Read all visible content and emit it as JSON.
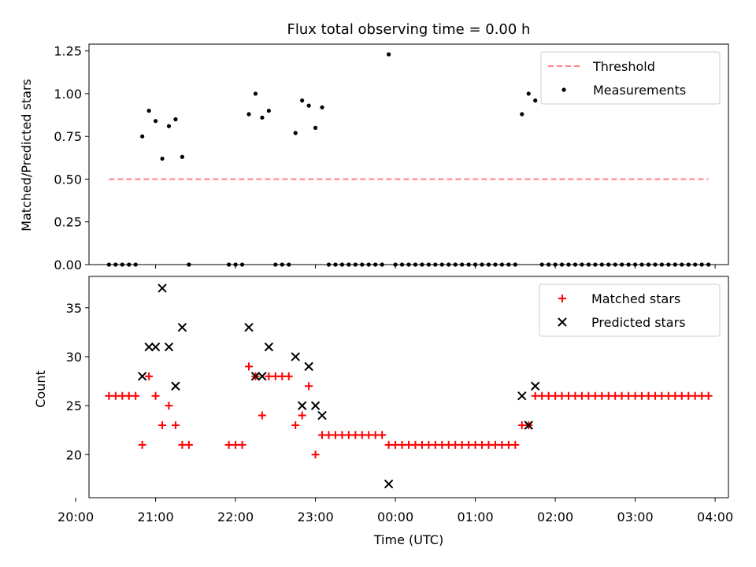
{
  "title": "Flux total observing time = 0.00 h",
  "colors": {
    "threshold": "#ff8080",
    "matched": "#ff0000",
    "predicted": "#000000",
    "measurement": "#000000"
  },
  "chart_data": [
    {
      "type": "scatter",
      "ylabel": "Matched/Predicted stars",
      "xlim": [
        "20:10",
        "04:10"
      ],
      "ylim": [
        0,
        1.29
      ],
      "yticks": [
        "0.00",
        "0.25",
        "0.50",
        "0.75",
        "1.00",
        "1.25"
      ],
      "legend_position": "top-right",
      "series": [
        {
          "name": "Threshold",
          "kind": "dashed-line",
          "x": [
            "20:25",
            "03:55"
          ],
          "y": [
            0.5,
            0.5
          ]
        },
        {
          "name": "Measurements",
          "kind": "points",
          "x": [
            "20:25",
            "20:30",
            "20:35",
            "20:40",
            "20:45",
            "20:50",
            "20:55",
            "21:00",
            "21:05",
            "21:10",
            "21:15",
            "21:20",
            "21:25",
            "21:55",
            "22:00",
            "22:05",
            "22:10",
            "22:15",
            "22:20",
            "22:25",
            "22:30",
            "22:35",
            "22:40",
            "22:45",
            "22:50",
            "22:55",
            "23:00",
            "23:05",
            "23:10",
            "23:15",
            "23:20",
            "23:25",
            "23:30",
            "23:35",
            "23:40",
            "23:45",
            "23:50",
            "23:55",
            "00:00",
            "00:05",
            "00:10",
            "00:15",
            "00:20",
            "00:25",
            "00:30",
            "00:35",
            "00:40",
            "00:45",
            "00:50",
            "00:55",
            "01:00",
            "01:05",
            "01:10",
            "01:15",
            "01:20",
            "01:25",
            "01:30",
            "01:35",
            "01:40",
            "01:45",
            "01:50",
            "01:55",
            "02:00",
            "02:05",
            "02:10",
            "02:15",
            "02:20",
            "02:25",
            "02:30",
            "02:35",
            "02:40",
            "02:45",
            "02:50",
            "02:55",
            "03:00",
            "03:05",
            "03:10",
            "03:15",
            "03:20",
            "03:25",
            "03:30",
            "03:35",
            "03:40",
            "03:45",
            "03:50",
            "03:55"
          ],
          "y": [
            0,
            0,
            0,
            0,
            0,
            0.75,
            0.9,
            0.84,
            0.62,
            0.81,
            0.85,
            0.63,
            0,
            0,
            0,
            0,
            0.88,
            1.0,
            0.86,
            0.9,
            0,
            0,
            0,
            0.77,
            0.96,
            0.93,
            0.8,
            0.92,
            0,
            0,
            0,
            0,
            0,
            0,
            0,
            0,
            0,
            1.23,
            0,
            0,
            0,
            0,
            0,
            0,
            0,
            0,
            0,
            0,
            0,
            0,
            0,
            0,
            0,
            0,
            0,
            0,
            0,
            0.88,
            1.0,
            0.96,
            0,
            0,
            0,
            0,
            0,
            0,
            0,
            0,
            0,
            0,
            0,
            0,
            0,
            0,
            0,
            0,
            0,
            0,
            0,
            0,
            0,
            0,
            0,
            0,
            0,
            0
          ]
        }
      ]
    },
    {
      "type": "scatter",
      "xlabel": "Time (UTC)",
      "ylabel": "Count",
      "ylim": [
        15.6,
        38.2
      ],
      "yticks": [
        "20",
        "25",
        "30",
        "35"
      ],
      "xticks": [
        "20:00",
        "21:00",
        "22:00",
        "23:00",
        "00:00",
        "01:00",
        "02:00",
        "03:00",
        "04:00"
      ],
      "legend_position": "top-right",
      "series": [
        {
          "name": "Matched stars",
          "marker": "+",
          "x": [
            "20:25",
            "20:30",
            "20:35",
            "20:40",
            "20:45",
            "20:50",
            "20:55",
            "21:00",
            "21:05",
            "21:10",
            "21:15",
            "21:20",
            "21:25",
            "21:55",
            "22:00",
            "22:05",
            "22:10",
            "22:15",
            "22:20",
            "22:25",
            "22:30",
            "22:35",
            "22:40",
            "22:45",
            "22:50",
            "22:55",
            "23:00",
            "23:05",
            "23:10",
            "23:15",
            "23:20",
            "23:25",
            "23:30",
            "23:35",
            "23:40",
            "23:45",
            "23:50",
            "23:55",
            "00:00",
            "00:05",
            "00:10",
            "00:15",
            "00:20",
            "00:25",
            "00:30",
            "00:35",
            "00:40",
            "00:45",
            "00:50",
            "00:55",
            "01:00",
            "01:05",
            "01:10",
            "01:15",
            "01:20",
            "01:25",
            "01:30",
            "01:35",
            "01:40",
            "01:45",
            "01:50",
            "01:55",
            "02:00",
            "02:05",
            "02:10",
            "02:15",
            "02:20",
            "02:25",
            "02:30",
            "02:35",
            "02:40",
            "02:45",
            "02:50",
            "02:55",
            "03:00",
            "03:05",
            "03:10",
            "03:15",
            "03:20",
            "03:25",
            "03:30",
            "03:35",
            "03:40",
            "03:45",
            "03:50",
            "03:55"
          ],
          "y": [
            26,
            26,
            26,
            26,
            26,
            21,
            28,
            26,
            23,
            25,
            23,
            21,
            21,
            21,
            21,
            21,
            29,
            28,
            24,
            28,
            28,
            28,
            28,
            23,
            24,
            27,
            20,
            22,
            22,
            22,
            22,
            22,
            22,
            22,
            22,
            22,
            22,
            21,
            21,
            21,
            21,
            21,
            21,
            21,
            21,
            21,
            21,
            21,
            21,
            21,
            21,
            21,
            21,
            21,
            21,
            21,
            21,
            23,
            23,
            26,
            26,
            26,
            26,
            26,
            26,
            26,
            26,
            26,
            26,
            26,
            26,
            26,
            26,
            26,
            26,
            26,
            26,
            26,
            26,
            26,
            26,
            26,
            26,
            26,
            26,
            26
          ]
        },
        {
          "name": "Predicted stars",
          "marker": "x",
          "x": [
            "20:50",
            "20:55",
            "21:00",
            "21:05",
            "21:10",
            "21:15",
            "21:20",
            "22:10",
            "22:15",
            "22:20",
            "22:25",
            "22:45",
            "22:50",
            "22:55",
            "23:00",
            "23:05",
            "23:55",
            "01:35",
            "01:40",
            "01:45"
          ],
          "y": [
            28,
            31,
            31,
            37,
            31,
            27,
            33,
            33,
            28,
            28,
            31,
            30,
            25,
            29,
            25,
            24,
            17,
            26,
            23,
            27
          ]
        }
      ]
    }
  ]
}
